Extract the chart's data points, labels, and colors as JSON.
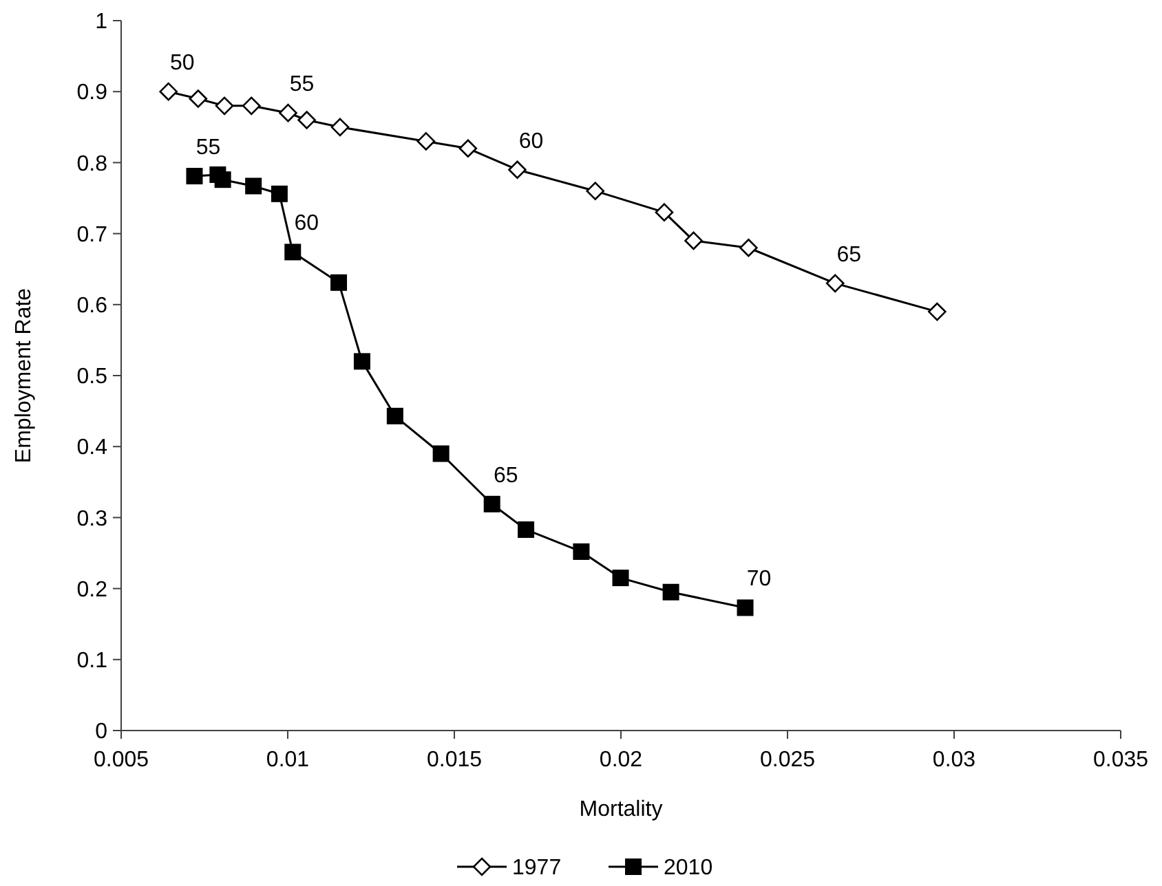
{
  "chart_data": {
    "type": "line",
    "xlabel": "Mortality",
    "ylabel": "Employment Rate",
    "xlim": [
      0.005,
      0.035
    ],
    "xticks": [
      0.005,
      0.01,
      0.015,
      0.02,
      0.025,
      0.03,
      0.035
    ],
    "ylim": [
      0,
      1
    ],
    "yticks": [
      0,
      0.1,
      0.2,
      0.3,
      0.4,
      0.5,
      0.6,
      0.7,
      0.8,
      0.9,
      1
    ],
    "grid": false,
    "legend": "bottom",
    "line_style": "solid",
    "series": [
      {
        "name": "1977",
        "color": "#000000",
        "marker": "diamond",
        "x": [
          0.00642,
          0.00731,
          0.0081,
          0.00891,
          0.01001,
          0.01057,
          0.01157,
          0.01415,
          0.01541,
          0.01689,
          0.01923,
          0.0213,
          0.02218,
          0.02383,
          0.02643,
          0.02949
        ],
        "values": [
          0.9,
          0.89,
          0.88,
          0.88,
          0.87,
          0.86,
          0.85,
          0.83,
          0.82,
          0.79,
          0.76,
          0.73,
          0.69,
          0.68,
          0.63,
          0.59
        ]
      },
      {
        "name": "2010",
        "color": "#000000",
        "marker": "square",
        "x": [
          0.0072,
          0.0079,
          0.00805,
          0.00897,
          0.00975,
          0.01015,
          0.01153,
          0.01223,
          0.01322,
          0.0146,
          0.01613,
          0.01715,
          0.01881,
          0.01999,
          0.0215,
          0.02373
        ],
        "values": [
          0.781,
          0.783,
          0.776,
          0.767,
          0.756,
          0.674,
          0.631,
          0.52,
          0.443,
          0.39,
          0.319,
          0.283,
          0.252,
          0.215,
          0.195,
          0.173
        ]
      }
    ],
    "annotations": [
      {
        "text": "50",
        "x": 0.00642,
        "y": 0.9
      },
      {
        "text": "55",
        "x": 0.01001,
        "y": 0.87
      },
      {
        "text": "60",
        "x": 0.01689,
        "y": 0.79
      },
      {
        "text": "65",
        "x": 0.02643,
        "y": 0.63
      },
      {
        "text": "55",
        "x": 0.0072,
        "y": 0.781
      },
      {
        "text": "60",
        "x": 0.01015,
        "y": 0.674
      },
      {
        "text": "65",
        "x": 0.01613,
        "y": 0.319
      },
      {
        "text": "70",
        "x": 0.02373,
        "y": 0.173
      }
    ]
  }
}
